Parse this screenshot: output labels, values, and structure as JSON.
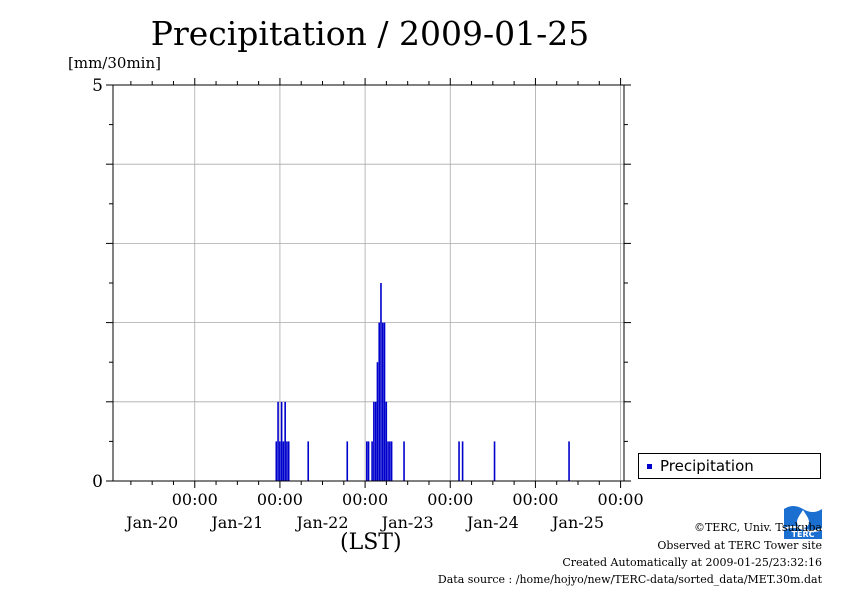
{
  "title": "Precipitation / 2009-01-25",
  "ylabel": "[mm/30min]",
  "xunit": "(LST)",
  "legend": {
    "label": "Precipitation",
    "color": "#0000cc"
  },
  "logo": {
    "text": "TERC",
    "icon": "terc-logo-icon",
    "color": "#1a6fd0"
  },
  "credits": [
    "©TERC, Univ. Tsukuba",
    "Observed at TERC Tower site",
    "Created Automatically at 2009-01-25/23:32:16",
    "Data source : /home/hojyo/new/TERC-data/sorted_data/MET.30m.dat"
  ],
  "chart_data": {
    "type": "bar",
    "title": "Precipitation / 2009-01-25",
    "ylabel": "[mm/30min]",
    "xlabel": "(LST)",
    "ylim": [
      0,
      5
    ],
    "yticks": [
      0,
      5
    ],
    "xrange_days": [
      -0.96,
      5.04
    ],
    "xticks": [
      {
        "day": 0,
        "time": "00:00",
        "date": "Jan-20"
      },
      {
        "day": 1,
        "time": "00:00",
        "date": "Jan-21"
      },
      {
        "day": 2,
        "time": "00:00",
        "date": "Jan-22"
      },
      {
        "day": 3,
        "time": "00:00",
        "date": "Jan-23"
      },
      {
        "day": 4,
        "time": "00:00",
        "date": "Jan-24"
      },
      {
        "day": 5,
        "time": "00:00",
        "date": "Jan-25"
      }
    ],
    "grid": true,
    "bar_interval_minutes": 30,
    "series": [
      {
        "name": "Precipitation",
        "color": "#0000cc",
        "points": [
          {
            "x": "2009-01-20 23:00",
            "y": 0.5
          },
          {
            "x": "2009-01-20 23:30",
            "y": 1.0
          },
          {
            "x": "2009-01-21 00:00",
            "y": 0.5
          },
          {
            "x": "2009-01-21 00:30",
            "y": 1.0
          },
          {
            "x": "2009-01-21 01:00",
            "y": 0.5
          },
          {
            "x": "2009-01-21 01:30",
            "y": 1.0
          },
          {
            "x": "2009-01-21 02:00",
            "y": 0.5
          },
          {
            "x": "2009-01-21 02:30",
            "y": 0.5
          },
          {
            "x": "2009-01-21 08:00",
            "y": 0.5
          },
          {
            "x": "2009-01-21 19:00",
            "y": 0.5
          },
          {
            "x": "2009-01-22 00:30",
            "y": 0.5
          },
          {
            "x": "2009-01-22 01:00",
            "y": 0.5
          },
          {
            "x": "2009-01-22 02:00",
            "y": 0.5
          },
          {
            "x": "2009-01-22 02:30",
            "y": 1.0
          },
          {
            "x": "2009-01-22 03:00",
            "y": 1.0
          },
          {
            "x": "2009-01-22 03:30",
            "y": 1.5
          },
          {
            "x": "2009-01-22 04:00",
            "y": 2.0
          },
          {
            "x": "2009-01-22 04:30",
            "y": 2.5
          },
          {
            "x": "2009-01-22 05:00",
            "y": 2.0
          },
          {
            "x": "2009-01-22 05:30",
            "y": 2.0
          },
          {
            "x": "2009-01-22 06:00",
            "y": 1.0
          },
          {
            "x": "2009-01-22 06:30",
            "y": 0.5
          },
          {
            "x": "2009-01-22 07:00",
            "y": 0.5
          },
          {
            "x": "2009-01-22 07:30",
            "y": 0.5
          },
          {
            "x": "2009-01-22 11:00",
            "y": 0.5
          },
          {
            "x": "2009-01-23 02:30",
            "y": 0.5
          },
          {
            "x": "2009-01-23 03:30",
            "y": 0.5
          },
          {
            "x": "2009-01-23 12:30",
            "y": 0.5
          },
          {
            "x": "2009-01-24 09:30",
            "y": 0.5
          }
        ]
      }
    ]
  }
}
